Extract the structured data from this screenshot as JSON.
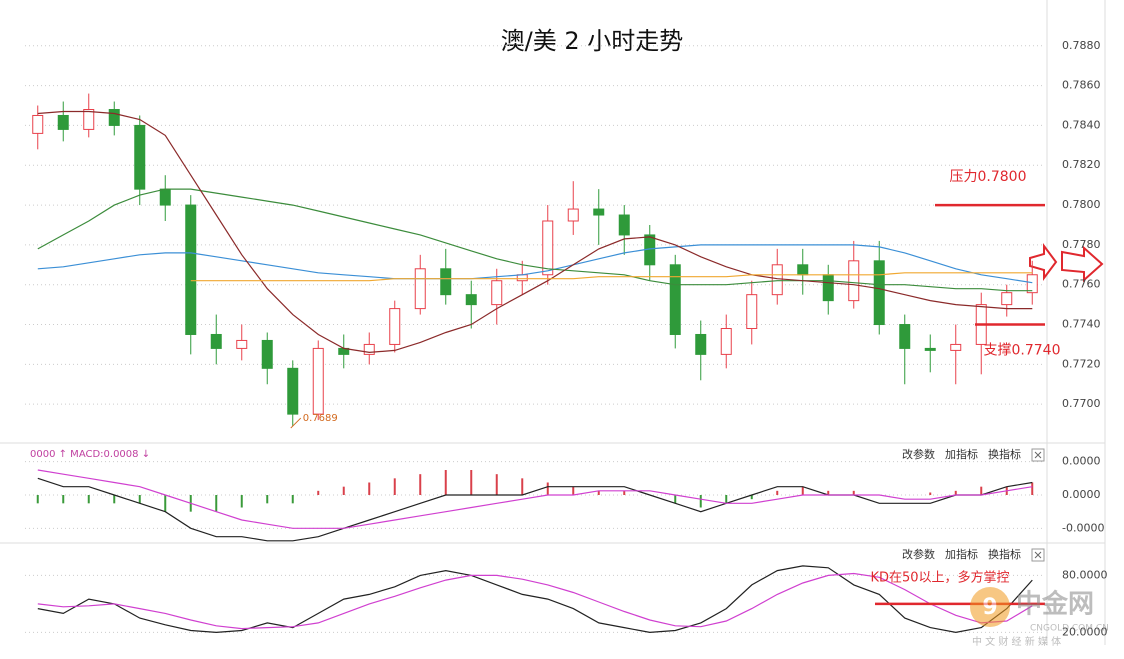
{
  "chart_data": [
    {
      "type": "candlestick",
      "title": "澳/美 2 小时走势",
      "open": [
        0.7836,
        0.7845,
        0.7838,
        0.7848,
        0.784,
        0.7808,
        0.78,
        0.7735,
        0.7728,
        0.7732,
        0.7718,
        0.7695,
        0.7728,
        0.7725,
        0.773,
        0.7748,
        0.7768,
        0.7755,
        0.775,
        0.7762,
        0.7765,
        0.7792,
        0.7798,
        0.7795,
        0.7785,
        0.777,
        0.7735,
        0.7725,
        0.7738,
        0.7755,
        0.777,
        0.7765,
        0.7752,
        0.7772,
        0.774,
        0.7728,
        0.7727,
        0.773,
        0.775,
        0.7756
      ],
      "high": [
        0.785,
        0.7852,
        0.7856,
        0.7852,
        0.7845,
        0.7815,
        0.7805,
        0.7745,
        0.774,
        0.7736,
        0.7722,
        0.7732,
        0.7735,
        0.7736,
        0.7752,
        0.7775,
        0.7778,
        0.7762,
        0.7768,
        0.7772,
        0.78,
        0.7812,
        0.7808,
        0.78,
        0.779,
        0.7775,
        0.7742,
        0.7745,
        0.7762,
        0.7778,
        0.7778,
        0.777,
        0.7782,
        0.7782,
        0.7745,
        0.7735,
        0.774,
        0.7756,
        0.776,
        0.7772
      ],
      "low": [
        0.7828,
        0.7832,
        0.7834,
        0.7835,
        0.78,
        0.7792,
        0.7725,
        0.772,
        0.7722,
        0.771,
        0.7689,
        0.7692,
        0.7718,
        0.772,
        0.7726,
        0.7745,
        0.775,
        0.7738,
        0.774,
        0.7755,
        0.776,
        0.7785,
        0.778,
        0.7775,
        0.7762,
        0.7728,
        0.7712,
        0.7718,
        0.773,
        0.775,
        0.7755,
        0.7745,
        0.7748,
        0.7735,
        0.771,
        0.7716,
        0.771,
        0.7715,
        0.7744,
        0.775
      ],
      "close": [
        0.7845,
        0.7838,
        0.7848,
        0.784,
        0.7808,
        0.78,
        0.7735,
        0.7728,
        0.7732,
        0.7718,
        0.7695,
        0.7728,
        0.7725,
        0.773,
        0.7748,
        0.7768,
        0.7755,
        0.775,
        0.7762,
        0.7765,
        0.7792,
        0.7798,
        0.7795,
        0.7785,
        0.777,
        0.7735,
        0.7725,
        0.7738,
        0.7755,
        0.777,
        0.7765,
        0.7752,
        0.7772,
        0.774,
        0.7728,
        0.7727,
        0.773,
        0.775,
        0.7756,
        0.7765
      ],
      "up_color": "#e8404a",
      "down_color": "#2f9a3a",
      "series": [
        {
          "color": "#3b8fd6",
          "values": [
            0.7768,
            0.7769,
            0.7771,
            0.7773,
            0.7775,
            0.7776,
            0.7776,
            0.7774,
            0.7772,
            0.777,
            0.7768,
            0.7766,
            0.7765,
            0.7764,
            0.7763,
            0.7763,
            0.7763,
            0.7763,
            0.7764,
            0.7765,
            0.7767,
            0.777,
            0.7773,
            0.7776,
            0.7778,
            0.7779,
            0.778,
            0.778,
            0.778,
            0.778,
            0.778,
            0.778,
            0.778,
            0.7779,
            0.7776,
            0.7772,
            0.7768,
            0.7765,
            0.7763,
            0.7761
          ]
        },
        {
          "color": "#3c8c3c",
          "values": [
            0.7778,
            0.7785,
            0.7792,
            0.78,
            0.7805,
            0.7808,
            0.7808,
            0.7806,
            0.7804,
            0.7802,
            0.78,
            0.7797,
            0.7794,
            0.7791,
            0.7788,
            0.7785,
            0.7781,
            0.7777,
            0.7773,
            0.777,
            0.7768,
            0.7767,
            0.7766,
            0.7765,
            0.7762,
            0.776,
            0.776,
            0.776,
            0.7761,
            0.7762,
            0.7762,
            0.7762,
            0.7761,
            0.776,
            0.776,
            0.7759,
            0.7758,
            0.7758,
            0.7757,
            0.7757
          ]
        },
        {
          "color": "#8b2a2a",
          "values": [
            0.7846,
            0.7847,
            0.7847,
            0.7846,
            0.7843,
            0.7835,
            0.7815,
            0.7795,
            0.7775,
            0.7758,
            0.7745,
            0.7735,
            0.7728,
            0.7726,
            0.7727,
            0.7731,
            0.7736,
            0.774,
            0.7748,
            0.7755,
            0.7762,
            0.777,
            0.7778,
            0.7783,
            0.7784,
            0.778,
            0.7774,
            0.7769,
            0.7765,
            0.7763,
            0.7762,
            0.7761,
            0.776,
            0.7758,
            0.7755,
            0.7752,
            0.775,
            0.7749,
            0.7748,
            0.7748
          ]
        },
        {
          "color": "#f0a830",
          "values": [
            null,
            null,
            null,
            null,
            null,
            null,
            0.7762,
            0.7762,
            0.7762,
            0.7762,
            0.7762,
            0.7762,
            0.7762,
            0.7762,
            0.7763,
            0.7763,
            0.7763,
            0.7763,
            0.7763,
            0.7763,
            0.7763,
            0.7763,
            0.7764,
            0.7764,
            0.7764,
            0.7764,
            0.7764,
            0.7764,
            0.7765,
            0.7765,
            0.7765,
            0.7765,
            0.7765,
            0.7765,
            0.7766,
            0.7766,
            0.7766,
            0.7766,
            0.7766,
            0.7766
          ]
        }
      ],
      "ylim": [
        0.7682,
        0.7903
      ],
      "yticks": [
        {
          "value": 0.77,
          "label": "0.7700"
        },
        {
          "value": 0.772,
          "label": "0.7720"
        },
        {
          "value": 0.774,
          "label": "0.7740"
        },
        {
          "value": 0.776,
          "label": "0.7760"
        },
        {
          "value": 0.778,
          "label": "0.7780"
        },
        {
          "value": 0.78,
          "label": "0.7800"
        },
        {
          "value": 0.782,
          "label": "0.7820"
        },
        {
          "value": 0.784,
          "label": "0.7840"
        },
        {
          "value": 0.786,
          "label": "0.7860"
        },
        {
          "value": 0.788,
          "label": "0.7880"
        }
      ],
      "grid": true,
      "levels": [
        {
          "label": "压力0.7800",
          "value": 0.78,
          "color": "#e0282e"
        },
        {
          "label": "支撑0.7740",
          "value": 0.774,
          "color": "#e0282e"
        }
      ],
      "annotations": [
        {
          "text": "0.7689",
          "value": 0.7689,
          "color": "#d2691e"
        }
      ]
    },
    {
      "type": "macd",
      "header": "0000 ↑ MACD:0.0008 ↓",
      "toolbar": [
        "改参数",
        "加指标",
        "换指标"
      ],
      "hist": [
        -1e-05,
        -1e-05,
        -1e-05,
        -1e-05,
        -1e-05,
        -2e-05,
        -2e-05,
        -2e-05,
        -1.5e-05,
        -1e-05,
        -1e-05,
        5e-06,
        1e-05,
        1.5e-05,
        2e-05,
        2.5e-05,
        3e-05,
        3e-05,
        2.5e-05,
        2e-05,
        1.5e-05,
        1e-05,
        5e-06,
        5e-06,
        0,
        -1e-05,
        -1.5e-05,
        -1e-05,
        -5e-06,
        5e-06,
        1e-05,
        5e-06,
        5e-06,
        0,
        0,
        3e-06,
        5e-06,
        1e-05,
        1e-05,
        1.5e-05
      ],
      "hist_up_color": "#d9404a",
      "hist_down_color": "#3a9a3a",
      "series": [
        {
          "color": "#222222",
          "values": [
            2e-05,
            1e-05,
            1e-05,
            0,
            -1e-05,
            -2e-05,
            -4e-05,
            -5e-05,
            -5e-05,
            -5.5e-05,
            -5.5e-05,
            -5e-05,
            -4e-05,
            -3e-05,
            -2e-05,
            -1e-05,
            0,
            0,
            0,
            0,
            1e-05,
            1e-05,
            1e-05,
            1e-05,
            0,
            -1e-05,
            -2e-05,
            -1e-05,
            0,
            1e-05,
            1e-05,
            0,
            0,
            -1e-05,
            -1e-05,
            -1e-05,
            0,
            0,
            1e-05,
            1.5e-05
          ]
        },
        {
          "color": "#d040d0",
          "values": [
            3e-05,
            2.5e-05,
            2e-05,
            1.5e-05,
            1e-05,
            0,
            -1e-05,
            -2e-05,
            -3e-05,
            -3.5e-05,
            -4e-05,
            -4e-05,
            -4e-05,
            -3.5e-05,
            -3e-05,
            -2.5e-05,
            -2e-05,
            -1.5e-05,
            -1e-05,
            -5e-06,
            0,
            0,
            5e-06,
            5e-06,
            5e-06,
            0,
            -5e-06,
            -1e-05,
            -1e-05,
            -5e-06,
            0,
            0,
            0,
            0,
            -5e-06,
            -5e-06,
            0,
            0,
            5e-06,
            1e-05
          ]
        }
      ],
      "ylim": [
        -6e-05,
        6e-05
      ],
      "yticks": [
        {
          "value": 4e-05,
          "label": "0.0000"
        },
        {
          "value": 0,
          "label": "0.0000"
        },
        {
          "value": -4e-05,
          "label": "-0.0000"
        }
      ]
    },
    {
      "type": "line",
      "toolbar": [
        "改参数",
        "加指标",
        "换指标"
      ],
      "series": [
        {
          "color": "#222222",
          "values": [
            45,
            40,
            55,
            50,
            35,
            28,
            22,
            20,
            22,
            30,
            25,
            40,
            55,
            60,
            68,
            80,
            85,
            80,
            70,
            60,
            55,
            45,
            30,
            25,
            20,
            22,
            30,
            45,
            70,
            85,
            90,
            88,
            70,
            60,
            35,
            25,
            20,
            25,
            45,
            75
          ]
        },
        {
          "color": "#d040d0",
          "values": [
            50,
            47,
            48,
            50,
            45,
            40,
            33,
            27,
            24,
            25,
            26,
            30,
            40,
            50,
            58,
            67,
            75,
            80,
            80,
            76,
            70,
            62,
            52,
            42,
            33,
            27,
            26,
            32,
            45,
            60,
            72,
            80,
            82,
            78,
            65,
            50,
            38,
            30,
            32,
            48
          ]
        }
      ],
      "ylim": [
        12,
        112
      ],
      "yticks": [
        {
          "value": 80,
          "label": "80.0000"
        },
        {
          "value": 20,
          "label": "20.0000"
        }
      ],
      "levels": [
        {
          "label": "KD在50以上，多方掌控",
          "value": 50,
          "color": "#e0282e"
        }
      ]
    }
  ],
  "watermark": {
    "name": "中金网",
    "domain": "CNGOLD.COM.CN",
    "slogan": "中 文 财 经 新 媒 体"
  }
}
